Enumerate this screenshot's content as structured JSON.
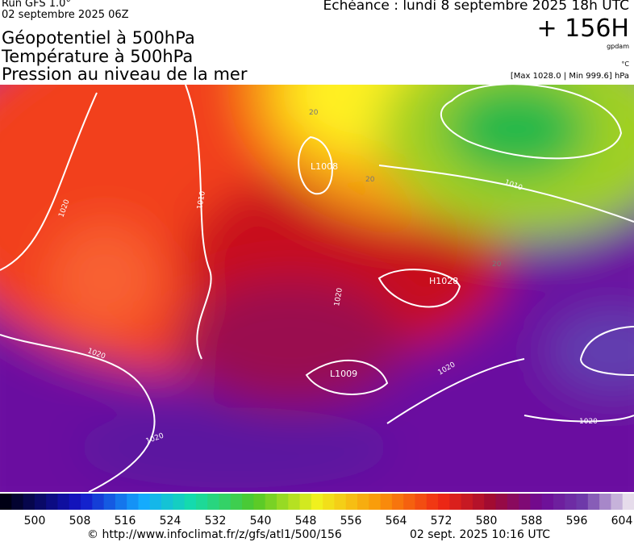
{
  "header": {
    "run": "Run GFS 1.0°",
    "run_date": "02 septembre 2025 06Z",
    "valid": "Echéance : lundi 8 septembre 2025 18h UTC",
    "titles": [
      "Géopotentiel à 500hPa",
      "Température à 500hPa",
      "Pression au niveau de la mer"
    ],
    "lead": "+ 156H",
    "unit_geo": "gpdam",
    "unit_temp": "°C",
    "range": "[Max 1028.0 | Min 999.6] hPa"
  },
  "map": {
    "labels": [
      "1020",
      "1010",
      "L1008",
      "1010",
      "H1028",
      "1020",
      "L1009",
      "1020",
      "1020",
      "1020",
      "1020",
      "20",
      "20",
      "20"
    ]
  },
  "colorbar": {
    "labels": [
      500,
      508,
      516,
      524,
      532,
      540,
      548,
      556,
      564,
      572,
      580,
      588,
      596,
      604
    ]
  },
  "footer": {
    "source": "© http://www.infoclimat.fr/z/gfs/atl1/500/156",
    "generated": "02 sept. 2025 10:16 UTC"
  }
}
